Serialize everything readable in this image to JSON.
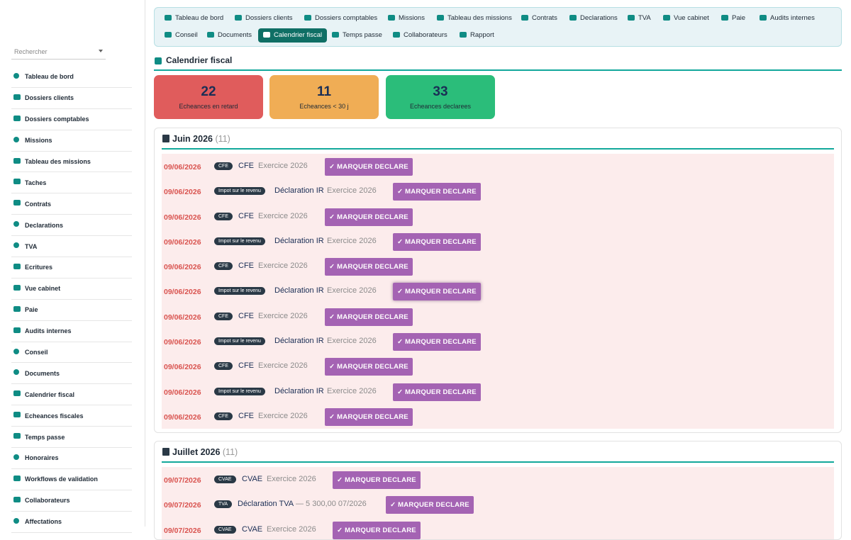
{
  "search": {
    "placeholder": "Rechercher"
  },
  "sidebar": {
    "items": [
      {
        "label": "Tableau de bord"
      },
      {
        "label": "Dossiers clients"
      },
      {
        "label": "Dossiers comptables"
      },
      {
        "label": "Missions"
      },
      {
        "label": "Tableau des missions"
      },
      {
        "label": "Taches"
      },
      {
        "label": "Contrats"
      },
      {
        "label": "Declarations"
      },
      {
        "label": "TVA"
      },
      {
        "label": "Ecritures"
      },
      {
        "label": "Vue cabinet"
      },
      {
        "label": "Paie"
      },
      {
        "label": "Audits internes"
      },
      {
        "label": "Conseil"
      },
      {
        "label": "Documents"
      },
      {
        "label": "Calendrier fiscal"
      },
      {
        "label": "Echeances fiscales"
      },
      {
        "label": "Temps passe"
      },
      {
        "label": "Honoraires"
      },
      {
        "label": "Workflows de validation"
      },
      {
        "label": "Collaborateurs"
      },
      {
        "label": "Affectations"
      }
    ]
  },
  "topnav": {
    "items": [
      {
        "label": "Tableau de bord"
      },
      {
        "label": "Dossiers clients"
      },
      {
        "label": "Dossiers comptables"
      },
      {
        "label": "Missions"
      },
      {
        "label": "Tableau des missions"
      },
      {
        "label": "Contrats"
      },
      {
        "label": "Declarations"
      },
      {
        "label": "TVA"
      },
      {
        "label": "Vue cabinet"
      },
      {
        "label": "Paie"
      },
      {
        "label": "Audits internes"
      },
      {
        "label": "Conseil"
      },
      {
        "label": "Documents"
      },
      {
        "label": "Calendrier fiscal"
      },
      {
        "label": "Temps passe"
      },
      {
        "label": "Collaborateurs"
      },
      {
        "label": "Rapport"
      }
    ],
    "active_index": 13
  },
  "page": {
    "title": "Calendrier fiscal"
  },
  "stats": [
    {
      "value": "22",
      "label": "Echeances en retard",
      "color": "#e05c5c"
    },
    {
      "value": "11",
      "label": "Echeances < 30 j",
      "color": "#f0ad55"
    },
    {
      "value": "33",
      "label": "Echeances declarees",
      "color": "#2bbd7a"
    }
  ],
  "button_label": "MARQUER DECLARE",
  "sections": [
    {
      "title": "Juin 2026",
      "count": "(11)",
      "rows": [
        {
          "date": "09/06/2026",
          "tag": "CFE",
          "name": "CFE",
          "extra": "Exercice 2026"
        },
        {
          "date": "09/06/2026",
          "tag": "Impot sur le revenu",
          "name": "Déclaration IR",
          "extra": "Exercice 2026"
        },
        {
          "date": "09/06/2026",
          "tag": "CFE",
          "name": "CFE",
          "extra": "Exercice 2026"
        },
        {
          "date": "09/06/2026",
          "tag": "Impot sur le revenu",
          "name": "Déclaration IR",
          "extra": "Exercice 2026"
        },
        {
          "date": "09/06/2026",
          "tag": "CFE",
          "name": "CFE",
          "extra": "Exercice 2026"
        },
        {
          "date": "09/06/2026",
          "tag": "Impot sur le revenu",
          "name": "Déclaration IR",
          "extra": "Exercice 2026"
        },
        {
          "date": "09/06/2026",
          "tag": "CFE",
          "name": "CFE",
          "extra": "Exercice 2026"
        },
        {
          "date": "09/06/2026",
          "tag": "Impot sur le revenu",
          "name": "Déclaration IR",
          "extra": "Exercice 2026"
        },
        {
          "date": "09/06/2026",
          "tag": "CFE",
          "name": "CFE",
          "extra": "Exercice 2026"
        },
        {
          "date": "09/06/2026",
          "tag": "Impot sur le revenu",
          "name": "Déclaration IR",
          "extra": "Exercice 2026"
        },
        {
          "date": "09/06/2026",
          "tag": "CFE",
          "name": "CFE",
          "extra": "Exercice 2026"
        }
      ]
    },
    {
      "title": "Juillet 2026",
      "count": "(11)",
      "rows": [
        {
          "date": "09/07/2026",
          "tag": "CVAE",
          "name": "CVAE",
          "extra": "Exercice 2026"
        },
        {
          "date": "09/07/2026",
          "tag": "TVA",
          "name": "Déclaration TVA",
          "extra": "— 5 300,00   07/2026"
        },
        {
          "date": "09/07/2026",
          "tag": "CVAE",
          "name": "CVAE",
          "extra": "Exercice 2026"
        }
      ]
    }
  ]
}
